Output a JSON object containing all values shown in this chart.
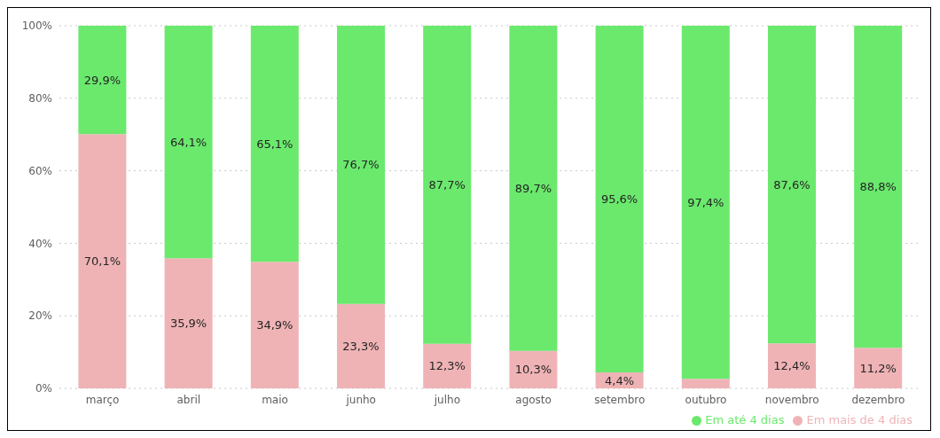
{
  "chart_data": {
    "type": "bar",
    "stacked": true,
    "categories": [
      "março",
      "abril",
      "maio",
      "junho",
      "julho",
      "agosto",
      "setembro",
      "outubro",
      "novembro",
      "dezembro"
    ],
    "series": [
      {
        "name": "Em mais de 4 dias",
        "color": "#efb3b6",
        "values": [
          70.1,
          35.9,
          34.9,
          23.3,
          12.3,
          10.3,
          4.4,
          2.6,
          12.4,
          11.2
        ],
        "value_labels": [
          "70,1%",
          "35,9%",
          "34,9%",
          "23,3%",
          "12,3%",
          "10,3%",
          "4,4%",
          null,
          "12,4%",
          "11,2%"
        ]
      },
      {
        "name": "Em até 4 dias",
        "color": "#6ae96d",
        "values": [
          29.9,
          64.1,
          65.1,
          76.7,
          87.7,
          89.7,
          95.6,
          97.4,
          87.6,
          88.8
        ],
        "value_labels": [
          "29,9%",
          "64,1%",
          "65,1%",
          "76,7%",
          "87,7%",
          "89,7%",
          "95,6%",
          "97,4%",
          "87,6%",
          "88,8%"
        ]
      }
    ],
    "ylim": [
      0,
      100
    ],
    "yticks": [
      {
        "value": 0,
        "label": "0%"
      },
      {
        "value": 20,
        "label": "20%"
      },
      {
        "value": 40,
        "label": "40%"
      },
      {
        "value": 60,
        "label": "60%"
      },
      {
        "value": 80,
        "label": "80%"
      },
      {
        "value": 100,
        "label": "100%"
      }
    ],
    "grid": "y",
    "legend": "bottom right"
  }
}
